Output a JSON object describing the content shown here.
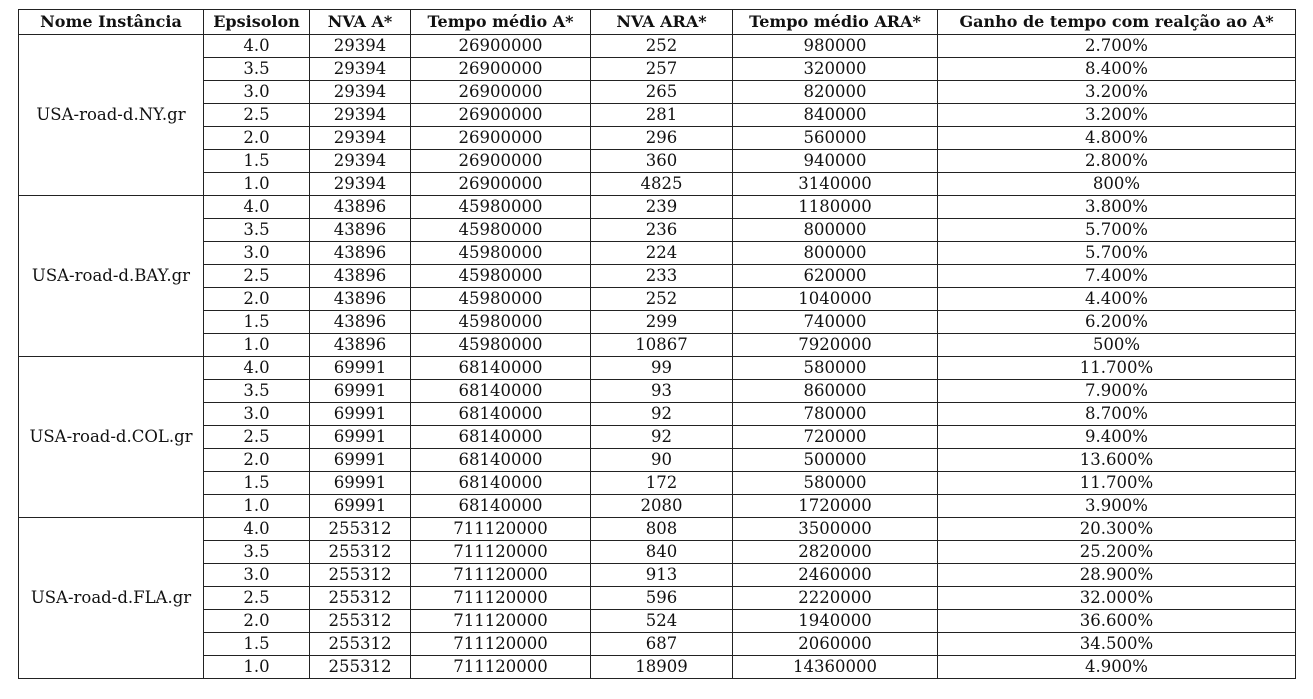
{
  "table": {
    "headers": [
      "Nome Instância",
      "Epsisolon",
      "NVA A*",
      "Tempo médio A*",
      "NVA ARA*",
      "Tempo médio ARA*",
      "Ganho de tempo com realção ao A*"
    ],
    "groups": [
      {
        "instance": "USA-road-d.NY.gr",
        "rows": [
          [
            "4.0",
            "29394",
            "26900000",
            "252",
            "980000",
            "2.700%"
          ],
          [
            "3.5",
            "29394",
            "26900000",
            "257",
            "320000",
            "8.400%"
          ],
          [
            "3.0",
            "29394",
            "26900000",
            "265",
            "820000",
            "3.200%"
          ],
          [
            "2.5",
            "29394",
            "26900000",
            "281",
            "840000",
            "3.200%"
          ],
          [
            "2.0",
            "29394",
            "26900000",
            "296",
            "560000",
            "4.800%"
          ],
          [
            "1.5",
            "29394",
            "26900000",
            "360",
            "940000",
            "2.800%"
          ],
          [
            "1.0",
            "29394",
            "26900000",
            "4825",
            "3140000",
            "800%"
          ]
        ]
      },
      {
        "instance": "USA-road-d.BAY.gr",
        "rows": [
          [
            "4.0",
            "43896",
            "45980000",
            "239",
            "1180000",
            "3.800%"
          ],
          [
            "3.5",
            "43896",
            "45980000",
            "236",
            "800000",
            "5.700%"
          ],
          [
            "3.0",
            "43896",
            "45980000",
            "224",
            "800000",
            "5.700%"
          ],
          [
            "2.5",
            "43896",
            "45980000",
            "233",
            "620000",
            "7.400%"
          ],
          [
            "2.0",
            "43896",
            "45980000",
            "252",
            "1040000",
            "4.400%"
          ],
          [
            "1.5",
            "43896",
            "45980000",
            "299",
            "740000",
            "6.200%"
          ],
          [
            "1.0",
            "43896",
            "45980000",
            "10867",
            "7920000",
            "500%"
          ]
        ]
      },
      {
        "instance": "USA-road-d.COL.gr",
        "rows": [
          [
            "4.0",
            "69991",
            "68140000",
            "99",
            "580000",
            "11.700%"
          ],
          [
            "3.5",
            "69991",
            "68140000",
            "93",
            "860000",
            "7.900%"
          ],
          [
            "3.0",
            "69991",
            "68140000",
            "92",
            "780000",
            "8.700%"
          ],
          [
            "2.5",
            "69991",
            "68140000",
            "92",
            "720000",
            "9.400%"
          ],
          [
            "2.0",
            "69991",
            "68140000",
            "90",
            "500000",
            "13.600%"
          ],
          [
            "1.5",
            "69991",
            "68140000",
            "172",
            "580000",
            "11.700%"
          ],
          [
            "1.0",
            "69991",
            "68140000",
            "2080",
            "1720000",
            "3.900%"
          ]
        ]
      },
      {
        "instance": "USA-road-d.FLA.gr",
        "rows": [
          [
            "4.0",
            "255312",
            "711120000",
            "808",
            "3500000",
            "20.300%"
          ],
          [
            "3.5",
            "255312",
            "711120000",
            "840",
            "2820000",
            "25.200%"
          ],
          [
            "3.0",
            "255312",
            "711120000",
            "913",
            "2460000",
            "28.900%"
          ],
          [
            "2.5",
            "255312",
            "711120000",
            "596",
            "2220000",
            "32.000%"
          ],
          [
            "2.0",
            "255312",
            "711120000",
            "524",
            "1940000",
            "36.600%"
          ],
          [
            "1.5",
            "255312",
            "711120000",
            "687",
            "2060000",
            "34.500%"
          ],
          [
            "1.0",
            "255312",
            "711120000",
            "18909",
            "14360000",
            "4.900%"
          ]
        ]
      }
    ]
  }
}
